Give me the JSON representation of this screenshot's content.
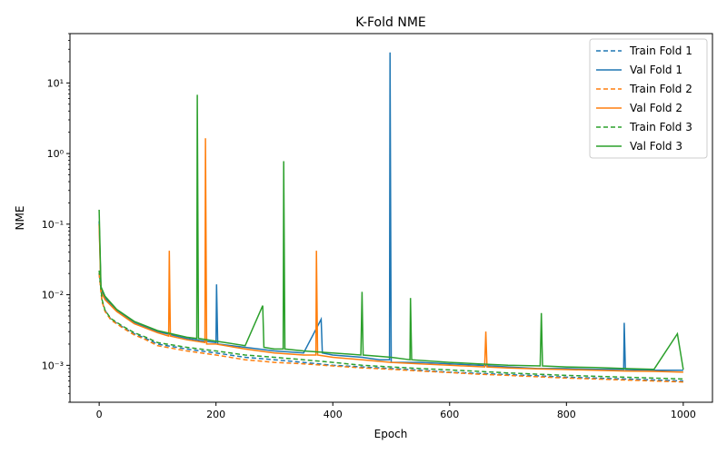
{
  "chart_data": {
    "type": "line",
    "title": "K-Fold NME",
    "xlabel": "Epoch",
    "ylabel": "NME",
    "xlim": [
      -50,
      1050
    ],
    "ylim": [
      0.0003,
      50
    ],
    "yscale": "log",
    "grid": false,
    "legend_position": "top-right",
    "x_ticks": [
      0,
      200,
      400,
      600,
      800,
      1000
    ],
    "x_tick_labels": [
      "0",
      "200",
      "400",
      "600",
      "800",
      "1000"
    ],
    "y_ticks": [
      0.001,
      0.01,
      0.1,
      1,
      10
    ],
    "y_tick_labels": [
      "10⁻³",
      "10⁻²",
      "10⁻¹",
      "10⁰",
      "10¹"
    ],
    "series": [
      {
        "name": "Train Fold 1",
        "color": "#1f77b4",
        "style": "dashed",
        "points": [
          [
            0,
            0.02
          ],
          [
            5,
            0.008
          ],
          [
            10,
            0.006
          ],
          [
            20,
            0.0045
          ],
          [
            40,
            0.0035
          ],
          [
            60,
            0.0028
          ],
          [
            80,
            0.0024
          ],
          [
            100,
            0.002
          ],
          [
            150,
            0.0017
          ],
          [
            200,
            0.0015
          ],
          [
            250,
            0.0013
          ],
          [
            300,
            0.0012
          ],
          [
            350,
            0.0011
          ],
          [
            400,
            0.001
          ],
          [
            450,
            0.00095
          ],
          [
            500,
            0.0009
          ],
          [
            550,
            0.00085
          ],
          [
            600,
            0.0008
          ],
          [
            650,
            0.00077
          ],
          [
            700,
            0.00074
          ],
          [
            750,
            0.00071
          ],
          [
            800,
            0.00068
          ],
          [
            850,
            0.00066
          ],
          [
            900,
            0.00064
          ],
          [
            950,
            0.00062
          ],
          [
            1000,
            0.0006
          ]
        ]
      },
      {
        "name": "Val Fold 1",
        "color": "#1f77b4",
        "style": "solid",
        "points": [
          [
            0,
            0.11
          ],
          [
            3,
            0.012
          ],
          [
            10,
            0.009
          ],
          [
            30,
            0.006
          ],
          [
            60,
            0.004
          ],
          [
            100,
            0.003
          ],
          [
            150,
            0.0024
          ],
          [
            180,
            0.0022
          ],
          [
            200,
            0.0021
          ],
          [
            201,
            0.014
          ],
          [
            203,
            0.002
          ],
          [
            250,
            0.0018
          ],
          [
            300,
            0.0016
          ],
          [
            350,
            0.0015
          ],
          [
            380,
            0.0045
          ],
          [
            382,
            0.0015
          ],
          [
            400,
            0.0014
          ],
          [
            450,
            0.0013
          ],
          [
            480,
            0.0012
          ],
          [
            497,
            0.0012
          ],
          [
            498,
            27
          ],
          [
            500,
            0.0011
          ],
          [
            550,
            0.0011
          ],
          [
            600,
            0.00105
          ],
          [
            650,
            0.001
          ],
          [
            700,
            0.00095
          ],
          [
            750,
            0.0009
          ],
          [
            800,
            0.0009
          ],
          [
            850,
            0.00088
          ],
          [
            898,
            0.00087
          ],
          [
            899,
            0.004
          ],
          [
            901,
            0.00087
          ],
          [
            950,
            0.00085
          ],
          [
            1000,
            0.00085
          ]
        ]
      },
      {
        "name": "Train Fold 2",
        "color": "#ff7f0e",
        "style": "dashed",
        "points": [
          [
            0,
            0.02
          ],
          [
            5,
            0.008
          ],
          [
            10,
            0.0058
          ],
          [
            20,
            0.0044
          ],
          [
            40,
            0.0034
          ],
          [
            60,
            0.0027
          ],
          [
            80,
            0.0023
          ],
          [
            100,
            0.0019
          ],
          [
            150,
            0.0016
          ],
          [
            200,
            0.0014
          ],
          [
            250,
            0.0012
          ],
          [
            300,
            0.0011
          ],
          [
            350,
            0.00105
          ],
          [
            400,
            0.00098
          ],
          [
            450,
            0.00092
          ],
          [
            500,
            0.00088
          ],
          [
            550,
            0.00083
          ],
          [
            600,
            0.00079
          ],
          [
            650,
            0.00075
          ],
          [
            700,
            0.00072
          ],
          [
            750,
            0.00069
          ],
          [
            800,
            0.00066
          ],
          [
            850,
            0.00064
          ],
          [
            900,
            0.00062
          ],
          [
            950,
            0.0006
          ],
          [
            1000,
            0.00058
          ]
        ]
      },
      {
        "name": "Val Fold 2",
        "color": "#ff7f0e",
        "style": "solid",
        "points": [
          [
            0,
            0.1
          ],
          [
            3,
            0.011
          ],
          [
            10,
            0.0085
          ],
          [
            30,
            0.0058
          ],
          [
            60,
            0.0039
          ],
          [
            100,
            0.0029
          ],
          [
            119,
            0.0026
          ],
          [
            120,
            0.042
          ],
          [
            122,
            0.0026
          ],
          [
            150,
            0.0023
          ],
          [
            181,
            0.0021
          ],
          [
            182,
            1.65
          ],
          [
            184,
            0.002
          ],
          [
            200,
            0.002
          ],
          [
            250,
            0.0017
          ],
          [
            300,
            0.0015
          ],
          [
            350,
            0.0014
          ],
          [
            371,
            0.0014
          ],
          [
            372,
            0.042
          ],
          [
            374,
            0.0014
          ],
          [
            400,
            0.0013
          ],
          [
            450,
            0.0012
          ],
          [
            500,
            0.0011
          ],
          [
            550,
            0.00105
          ],
          [
            600,
            0.001
          ],
          [
            660,
            0.00095
          ],
          [
            662,
            0.003
          ],
          [
            664,
            0.00095
          ],
          [
            700,
            0.00092
          ],
          [
            750,
            0.00089
          ],
          [
            800,
            0.00087
          ],
          [
            850,
            0.00085
          ],
          [
            900,
            0.00083
          ],
          [
            950,
            0.00082
          ],
          [
            1000,
            0.0008
          ]
        ]
      },
      {
        "name": "Train Fold 3",
        "color": "#2ca02c",
        "style": "dashed",
        "points": [
          [
            0,
            0.022
          ],
          [
            5,
            0.0085
          ],
          [
            10,
            0.006
          ],
          [
            20,
            0.0046
          ],
          [
            40,
            0.0036
          ],
          [
            60,
            0.0029
          ],
          [
            80,
            0.0025
          ],
          [
            100,
            0.0021
          ],
          [
            150,
            0.0018
          ],
          [
            200,
            0.0016
          ],
          [
            250,
            0.0014
          ],
          [
            300,
            0.0013
          ],
          [
            350,
            0.0012
          ],
          [
            400,
            0.0011
          ],
          [
            450,
            0.001
          ],
          [
            500,
            0.00095
          ],
          [
            550,
            0.0009
          ],
          [
            600,
            0.00086
          ],
          [
            650,
            0.00082
          ],
          [
            700,
            0.00078
          ],
          [
            750,
            0.00075
          ],
          [
            800,
            0.00072
          ],
          [
            850,
            0.0007
          ],
          [
            900,
            0.00068
          ],
          [
            950,
            0.00066
          ],
          [
            1000,
            0.00064
          ]
        ]
      },
      {
        "name": "Val Fold 3",
        "color": "#2ca02c",
        "style": "solid",
        "points": [
          [
            0,
            0.16
          ],
          [
            3,
            0.013
          ],
          [
            10,
            0.0095
          ],
          [
            30,
            0.0062
          ],
          [
            60,
            0.0042
          ],
          [
            100,
            0.0031
          ],
          [
            150,
            0.0025
          ],
          [
            167,
            0.0024
          ],
          [
            168,
            6.8
          ],
          [
            170,
            0.0024
          ],
          [
            200,
            0.0022
          ],
          [
            250,
            0.0019
          ],
          [
            280,
            0.007
          ],
          [
            282,
            0.0018
          ],
          [
            300,
            0.0017
          ],
          [
            315,
            0.0017
          ],
          [
            316,
            0.78
          ],
          [
            318,
            0.0017
          ],
          [
            350,
            0.0016
          ],
          [
            400,
            0.0015
          ],
          [
            448,
            0.0014
          ],
          [
            450,
            0.011
          ],
          [
            452,
            0.0014
          ],
          [
            500,
            0.0013
          ],
          [
            532,
            0.0012
          ],
          [
            533,
            0.009
          ],
          [
            535,
            0.0012
          ],
          [
            600,
            0.0011
          ],
          [
            650,
            0.00105
          ],
          [
            700,
            0.001
          ],
          [
            755,
            0.00098
          ],
          [
            757,
            0.0055
          ],
          [
            759,
            0.00098
          ],
          [
            800,
            0.00095
          ],
          [
            850,
            0.00093
          ],
          [
            900,
            0.0009
          ],
          [
            950,
            0.00088
          ],
          [
            990,
            0.0028
          ],
          [
            1000,
            0.00087
          ]
        ]
      }
    ]
  }
}
